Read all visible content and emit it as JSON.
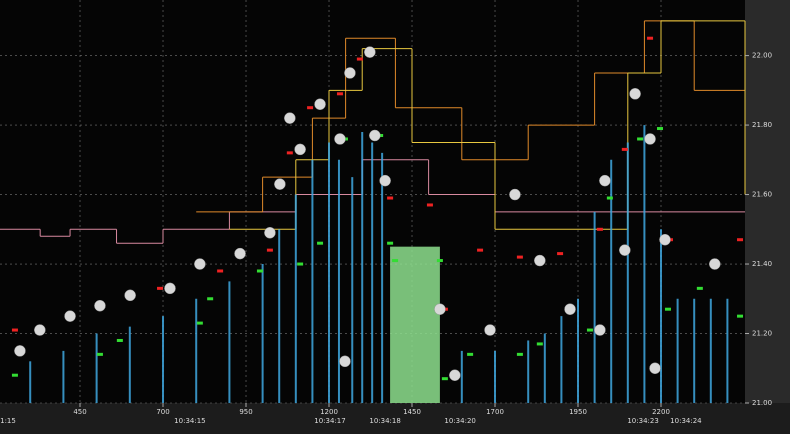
{
  "chart_data": {
    "type": "combo",
    "xlim": [
      209,
      2453
    ],
    "ylim": [
      21.0,
      22.16
    ],
    "xticks": [
      450,
      700,
      950,
      1200,
      1450,
      1700,
      1950,
      2200
    ],
    "yticks": [
      {
        "value": 21.0,
        "label": "21.00"
      },
      {
        "value": 21.2,
        "label": "21.20"
      },
      {
        "value": 21.4,
        "label": "21.40"
      },
      {
        "value": 21.6,
        "label": "21.60"
      },
      {
        "value": 21.8,
        "label": "21.80"
      },
      {
        "value": 22.0,
        "label": "22.00"
      }
    ],
    "time_labels": [
      {
        "value": 224,
        "label": "1:15"
      },
      {
        "value": 781,
        "label": "10:34:15"
      },
      {
        "value": 1203,
        "label": "10:34:17"
      },
      {
        "value": 1369,
        "label": "10:34:18"
      },
      {
        "value": 1595,
        "label": "10:34:20"
      },
      {
        "value": 2146,
        "label": "10:34:23"
      },
      {
        "value": 2275,
        "label": "10:34:24"
      }
    ],
    "grid": true,
    "series": [
      {
        "type": "step",
        "color": "#d98aa0",
        "x": [
          209,
          330,
          420,
          560,
          700,
          900,
          1100,
          1300,
          1500,
          1700
        ],
        "values": [
          21.5,
          21.48,
          21.5,
          21.46,
          21.5,
          21.55,
          21.6,
          21.7,
          21.6,
          21.55
        ]
      },
      {
        "type": "step",
        "color": "#e08a2a",
        "x": [
          800,
          1000,
          1150,
          1250,
          1400,
          1600,
          1800,
          2000,
          2150,
          2300,
          2453
        ],
        "values": [
          21.55,
          21.65,
          21.82,
          22.05,
          21.85,
          21.7,
          21.8,
          21.95,
          22.1,
          21.9,
          21.7
        ]
      },
      {
        "type": "step",
        "color": "#e8c840",
        "x": [
          900,
          1100,
          1200,
          1300,
          1450,
          1700,
          2100,
          2200,
          2453
        ],
        "values": [
          21.5,
          21.7,
          21.9,
          22.02,
          21.75,
          21.5,
          21.95,
          22.1,
          21.6
        ]
      },
      {
        "type": "bars",
        "color": "#3fa8e0",
        "x": [
          300,
          400,
          500,
          600,
          700,
          800,
          900,
          1000,
          1050,
          1100,
          1150,
          1200,
          1230,
          1270,
          1300,
          1330,
          1360,
          1600,
          1700,
          1800,
          1850,
          1900,
          1950,
          2000,
          2050,
          2100,
          2150,
          2200,
          2250,
          2300,
          2350,
          2400
        ],
        "values": [
          21.12,
          21.15,
          21.2,
          21.22,
          21.25,
          21.3,
          21.35,
          21.4,
          21.5,
          21.6,
          21.7,
          21.75,
          21.7,
          21.65,
          21.78,
          21.75,
          21.72,
          21.15,
          21.15,
          21.18,
          21.2,
          21.25,
          21.3,
          21.55,
          21.7,
          21.75,
          21.8,
          21.5,
          21.3,
          21.3,
          21.3,
          21.3
        ]
      },
      {
        "type": "band",
        "color": "#8ee08e",
        "x": [
          1384,
          1534
        ],
        "value": 21.45
      },
      {
        "type": "points",
        "color": "#33dd33",
        "x": [
          254,
          510,
          570,
          811,
          842,
          992,
          1113,
          1173,
          1248,
          1354,
          1384,
          1399,
          1534,
          1549,
          1625,
          1775,
          1835,
          1986,
          2046,
          2137,
          2197,
          2221,
          2317,
          2438
        ],
        "values": [
          21.08,
          21.14,
          21.18,
          21.23,
          21.3,
          21.38,
          21.4,
          21.46,
          21.76,
          21.77,
          21.46,
          21.41,
          21.41,
          21.07,
          21.14,
          21.14,
          21.17,
          21.21,
          21.59,
          21.76,
          21.79,
          21.27,
          21.33,
          21.25
        ]
      },
      {
        "type": "points",
        "color": "#ee2222",
        "x": [
          254,
          510,
          691,
          872,
          1022,
          1082,
          1143,
          1233,
          1293,
          1384,
          1504,
          1549,
          1655,
          1775,
          1896,
          2016,
          2091,
          2167,
          2227,
          2438
        ],
        "values": [
          21.21,
          21.28,
          21.33,
          21.38,
          21.44,
          21.72,
          21.85,
          21.89,
          21.99,
          21.59,
          21.57,
          21.27,
          21.44,
          21.42,
          21.43,
          21.5,
          21.73,
          22.05,
          21.47,
          21.47
        ]
      },
      {
        "type": "circles",
        "color": "#d8d8d8",
        "x": [
          269,
          329,
          420,
          510,
          601,
          721,
          811,
          932,
          1022,
          1052,
          1082,
          1113,
          1173,
          1233,
          1263,
          1323,
          1338,
          1369,
          1248,
          1534,
          1579,
          1685,
          1760,
          1835,
          1926,
          2016,
          2031,
          2091,
          2122,
          2167,
          2212,
          2182,
          2362
        ],
        "values": [
          21.15,
          21.21,
          21.25,
          21.28,
          21.31,
          21.33,
          21.4,
          21.43,
          21.49,
          21.63,
          21.82,
          21.73,
          21.86,
          21.76,
          21.95,
          22.01,
          21.77,
          21.64,
          21.12,
          21.27,
          21.08,
          21.21,
          21.6,
          21.41,
          21.27,
          21.21,
          21.64,
          21.44,
          21.89,
          21.76,
          21.47,
          21.1,
          21.4
        ]
      }
    ]
  }
}
